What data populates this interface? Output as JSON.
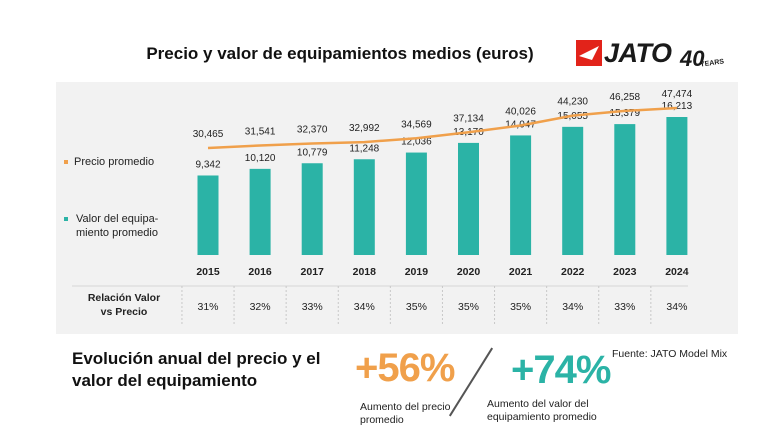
{
  "title": "Precio y valor de equipamientos medios (euros)",
  "logo": {
    "text": "JATO",
    "number": "40",
    "years": "YEARS"
  },
  "legend": {
    "price": "Precio promedio",
    "equipment": "Valor del equipa- miento promedio"
  },
  "ratio_label": "Relación Valor vs Precio",
  "bottom_title": "Evolución anual del precio y el valor del equipamiento",
  "highlights": {
    "price_pct": "+56%",
    "price_text": "Aumento del precio promedio",
    "equip_pct": "+74%",
    "equip_text": "Aumento del valor del equipamiento promedio"
  },
  "source": "Fuente: JATO Model Mix",
  "colors": {
    "bar": "#2bb3a6",
    "line": "#f0a04b",
    "panel": "#f2f2f2"
  },
  "chart_data": {
    "type": "bar",
    "title": "Precio y valor de equipamientos medios (euros)",
    "categories": [
      "2015",
      "2016",
      "2017",
      "2018",
      "2019",
      "2020",
      "2021",
      "2022",
      "2023",
      "2024"
    ],
    "series": [
      {
        "name": "Valor del equipamiento promedio",
        "type": "bar",
        "values": [
          9342,
          10120,
          10779,
          11248,
          12036,
          13170,
          14047,
          15055,
          15379,
          16213
        ],
        "labels": [
          "9,342",
          "10,120",
          "10,779",
          "11,248",
          "12,036",
          "13,170",
          "14,047",
          "15,055",
          "15,379",
          "16,213"
        ]
      },
      {
        "name": "Precio promedio",
        "type": "line",
        "values": [
          30465,
          31541,
          32370,
          32992,
          34569,
          37134,
          40026,
          44230,
          46258,
          47474
        ],
        "labels": [
          "30,465",
          "31,541",
          "32,370",
          "32,992",
          "34,569",
          "37,134",
          "40,026",
          "44,230",
          "46,258",
          "47,474"
        ]
      }
    ],
    "ratios": [
      "31%",
      "32%",
      "33%",
      "34%",
      "35%",
      "35%",
      "35%",
      "34%",
      "33%",
      "34%"
    ],
    "xlabel": "",
    "ylabel": ""
  }
}
